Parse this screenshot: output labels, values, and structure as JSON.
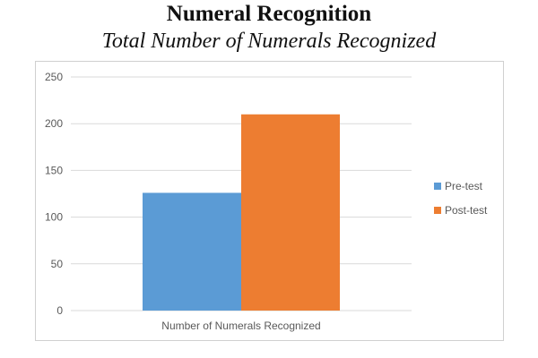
{
  "header": {
    "title": "Numeral Recognition",
    "subtitle": "Total Number of Numerals Recognized"
  },
  "chart_data": {
    "type": "bar",
    "title": "Numeral Recognition",
    "subtitle": "Total Number of Numerals Recognized",
    "categories": [
      "Number of Numerals Recognized"
    ],
    "series": [
      {
        "name": "Pre-test",
        "values": [
          126
        ],
        "color": "#5b9bd5"
      },
      {
        "name": "Post-test",
        "values": [
          210
        ],
        "color": "#ed7d31"
      }
    ],
    "ylim": [
      0,
      250
    ],
    "yticks": [
      0,
      50,
      100,
      150,
      200,
      250
    ],
    "grid": true,
    "legend": "right"
  }
}
